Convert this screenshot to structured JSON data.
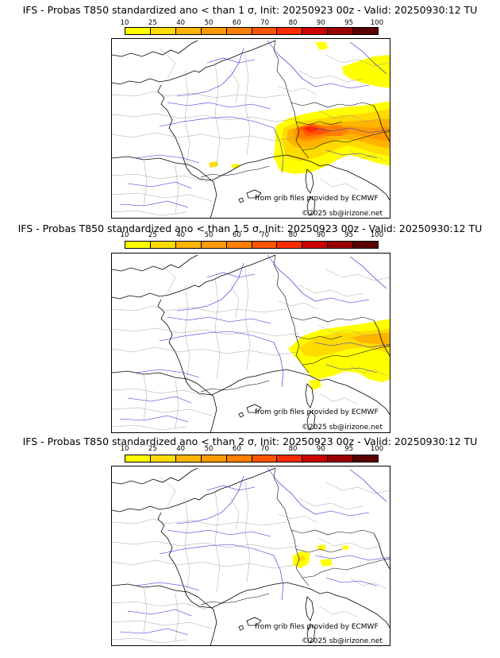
{
  "legend": {
    "ticks": [
      "10",
      "25",
      "40",
      "50",
      "60",
      "70",
      "80",
      "90",
      "95",
      "100"
    ],
    "colors": [
      "#ffff00",
      "#ffdb00",
      "#ffb400",
      "#ff9a00",
      "#ff7f00",
      "#ff5500",
      "#ff2a00",
      "#cc0000",
      "#9b0000",
      "#5a0000"
    ]
  },
  "panels": [
    {
      "title": "IFS - Probas T850  standardized ano < than 1 σ, Init: 20250923 00z - Valid: 20250930:12 TU",
      "source": "from grib files provided by ECMWF",
      "copyright": "©2025 sb@irizone.net"
    },
    {
      "title": "IFS - Probas T850  standardized ano < than 1.5 σ, Init: 20250923 00z - Valid: 20250930:12 TU",
      "source": "from grib files provided by ECMWF",
      "copyright": "©2025 sb@irizone.net"
    },
    {
      "title": "IFS - Probas T850  standardized ano < than 2 σ, Init: 20250923 00z - Valid: 20250930:12 TU",
      "source": "from grib files provided by ECMWF",
      "copyright": "©2025 sb@irizone.net"
    }
  ]
}
